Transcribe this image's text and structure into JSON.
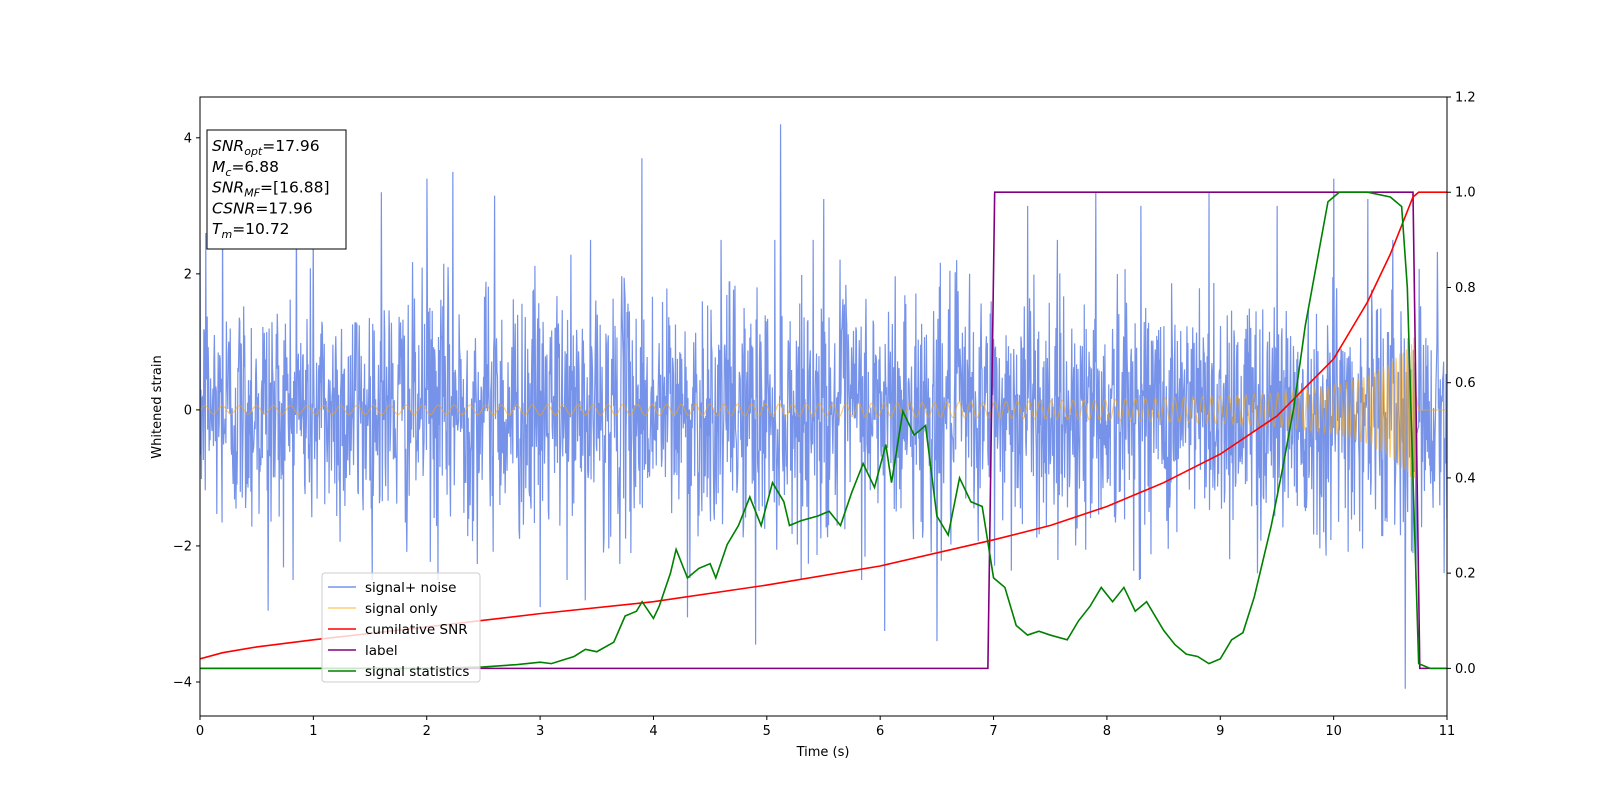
{
  "chart_data": {
    "type": "line",
    "xlabel": "Time (s)",
    "ylabel": "Whitened strain",
    "xlim": [
      0,
      11
    ],
    "ylim": [
      -4.5,
      4.6
    ],
    "y2lim": [
      -0.1,
      1.2
    ],
    "grid": false,
    "legend_position": "lower-left",
    "x_ticks": [
      "0",
      "1",
      "2",
      "3",
      "4",
      "5",
      "6",
      "7",
      "8",
      "9",
      "10",
      "11"
    ],
    "y_ticks": [
      "−4",
      "−2",
      "0",
      "2",
      "4"
    ],
    "y2_ticks": [
      "0.0",
      "0.2",
      "0.4",
      "0.6",
      "0.8",
      "1.0",
      "1.2"
    ],
    "annotation": {
      "lines": [
        {
          "base": "SNR",
          "sub": "opt",
          "value": "=17.96"
        },
        {
          "base": "M",
          "sub": "c",
          "value": "=6.88"
        },
        {
          "base": "SNR",
          "sub": "MF",
          "value": "=[16.88]"
        },
        {
          "base": "CSNR",
          "sub": "",
          "value": "=17.96"
        },
        {
          "base": "T",
          "sub": "m",
          "value": "=10.72"
        }
      ]
    },
    "series": [
      {
        "name": "signal+ noise",
        "axis": "left",
        "color": "#4169e1",
        "description_shape": "noise band, amplitude roughly 1.6 std with spikes up to 4.2",
        "noise_std": 1.0,
        "spikes": [
          {
            "x": 0.05,
            "y": 2.6
          },
          {
            "x": 0.2,
            "y": 3.0
          },
          {
            "x": 0.6,
            "y": -2.95
          },
          {
            "x": 0.85,
            "y": 3.1
          },
          {
            "x": 1.0,
            "y": 2.7
          },
          {
            "x": 1.6,
            "y": 3.2
          },
          {
            "x": 2.0,
            "y": 3.4
          },
          {
            "x": 2.1,
            "y": -2.5
          },
          {
            "x": 2.23,
            "y": 3.5
          },
          {
            "x": 2.6,
            "y": 3.15
          },
          {
            "x": 3.0,
            "y": -2.9
          },
          {
            "x": 3.4,
            "y": -2.8
          },
          {
            "x": 3.9,
            "y": 3.7
          },
          {
            "x": 4.3,
            "y": -3.05
          },
          {
            "x": 4.9,
            "y": -3.45
          },
          {
            "x": 5.12,
            "y": 4.2
          },
          {
            "x": 5.5,
            "y": 3.1
          },
          {
            "x": 6.04,
            "y": -3.25
          },
          {
            "x": 6.5,
            "y": -3.4
          },
          {
            "x": 7.3,
            "y": 3.0
          },
          {
            "x": 7.9,
            "y": 3.2
          },
          {
            "x": 8.3,
            "y": 3.0
          },
          {
            "x": 8.9,
            "y": 3.2
          },
          {
            "x": 9.5,
            "y": 3.0
          },
          {
            "x": 10.0,
            "y": 3.4
          },
          {
            "x": 10.3,
            "y": 3.1
          },
          {
            "x": 10.63,
            "y": -4.1
          }
        ]
      },
      {
        "name": "signal only",
        "axis": "left",
        "color": "#ffa500",
        "description_shape": "chirp envelope",
        "envelope": [
          {
            "x": 0,
            "y": 0.06
          },
          {
            "x": 2,
            "y": 0.07
          },
          {
            "x": 4,
            "y": 0.08
          },
          {
            "x": 6,
            "y": 0.1
          },
          {
            "x": 7,
            "y": 0.12
          },
          {
            "x": 8,
            "y": 0.15
          },
          {
            "x": 9,
            "y": 0.2
          },
          {
            "x": 9.5,
            "y": 0.25
          },
          {
            "x": 10,
            "y": 0.35
          },
          {
            "x": 10.3,
            "y": 0.5
          },
          {
            "x": 10.5,
            "y": 0.7
          },
          {
            "x": 10.65,
            "y": 0.95
          },
          {
            "x": 10.72,
            "y": 1.1
          },
          {
            "x": 10.75,
            "y": 0
          },
          {
            "x": 11,
            "y": 0
          }
        ],
        "merger_time": 10.72
      },
      {
        "name": "cumilative SNR",
        "axis": "right",
        "color": "#ff0000",
        "points": [
          {
            "x": 0,
            "y": 0.02
          },
          {
            "x": 0.2,
            "y": 0.033
          },
          {
            "x": 0.5,
            "y": 0.045
          },
          {
            "x": 1,
            "y": 0.06
          },
          {
            "x": 2,
            "y": 0.087
          },
          {
            "x": 3,
            "y": 0.115
          },
          {
            "x": 4,
            "y": 0.14
          },
          {
            "x": 5,
            "y": 0.175
          },
          {
            "x": 6,
            "y": 0.215
          },
          {
            "x": 7,
            "y": 0.27
          },
          {
            "x": 7.5,
            "y": 0.3
          },
          {
            "x": 8,
            "y": 0.34
          },
          {
            "x": 8.5,
            "y": 0.39
          },
          {
            "x": 9,
            "y": 0.45
          },
          {
            "x": 9.5,
            "y": 0.53
          },
          {
            "x": 10,
            "y": 0.65
          },
          {
            "x": 10.3,
            "y": 0.77
          },
          {
            "x": 10.5,
            "y": 0.87
          },
          {
            "x": 10.6,
            "y": 0.93
          },
          {
            "x": 10.7,
            "y": 0.99
          },
          {
            "x": 10.75,
            "y": 1.0
          },
          {
            "x": 11,
            "y": 1.0
          }
        ]
      },
      {
        "name": "label",
        "axis": "right",
        "color": "#800080",
        "points": [
          {
            "x": 0,
            "y": 0.0
          },
          {
            "x": 6.95,
            "y": 0.0
          },
          {
            "x": 7.01,
            "y": 1.0
          },
          {
            "x": 10.7,
            "y": 1.0
          },
          {
            "x": 10.76,
            "y": 0.0
          },
          {
            "x": 11,
            "y": 0.0
          }
        ]
      },
      {
        "name": "signal statistics",
        "axis": "right",
        "color": "#008000",
        "points": [
          {
            "x": 0,
            "y": 0.0
          },
          {
            "x": 1,
            "y": 0.0
          },
          {
            "x": 2,
            "y": 0.0
          },
          {
            "x": 2.5,
            "y": 0.003
          },
          {
            "x": 2.8,
            "y": 0.008
          },
          {
            "x": 3.0,
            "y": 0.013
          },
          {
            "x": 3.1,
            "y": 0.01
          },
          {
            "x": 3.3,
            "y": 0.025
          },
          {
            "x": 3.4,
            "y": 0.04
          },
          {
            "x": 3.5,
            "y": 0.035
          },
          {
            "x": 3.65,
            "y": 0.055
          },
          {
            "x": 3.75,
            "y": 0.11
          },
          {
            "x": 3.85,
            "y": 0.12
          },
          {
            "x": 3.9,
            "y": 0.14
          },
          {
            "x": 4.0,
            "y": 0.105
          },
          {
            "x": 4.05,
            "y": 0.13
          },
          {
            "x": 4.15,
            "y": 0.2
          },
          {
            "x": 4.2,
            "y": 0.25
          },
          {
            "x": 4.3,
            "y": 0.19
          },
          {
            "x": 4.4,
            "y": 0.21
          },
          {
            "x": 4.5,
            "y": 0.22
          },
          {
            "x": 4.55,
            "y": 0.19
          },
          {
            "x": 4.65,
            "y": 0.26
          },
          {
            "x": 4.75,
            "y": 0.3
          },
          {
            "x": 4.85,
            "y": 0.36
          },
          {
            "x": 4.95,
            "y": 0.3
          },
          {
            "x": 5.05,
            "y": 0.39
          },
          {
            "x": 5.15,
            "y": 0.35
          },
          {
            "x": 5.2,
            "y": 0.3
          },
          {
            "x": 5.3,
            "y": 0.31
          },
          {
            "x": 5.45,
            "y": 0.32
          },
          {
            "x": 5.55,
            "y": 0.33
          },
          {
            "x": 5.65,
            "y": 0.3
          },
          {
            "x": 5.75,
            "y": 0.37
          },
          {
            "x": 5.85,
            "y": 0.43
          },
          {
            "x": 5.95,
            "y": 0.38
          },
          {
            "x": 6.05,
            "y": 0.47
          },
          {
            "x": 6.1,
            "y": 0.39
          },
          {
            "x": 6.2,
            "y": 0.54
          },
          {
            "x": 6.3,
            "y": 0.49
          },
          {
            "x": 6.4,
            "y": 0.51
          },
          {
            "x": 6.5,
            "y": 0.32
          },
          {
            "x": 6.6,
            "y": 0.28
          },
          {
            "x": 6.7,
            "y": 0.4
          },
          {
            "x": 6.8,
            "y": 0.35
          },
          {
            "x": 6.9,
            "y": 0.34
          },
          {
            "x": 7.0,
            "y": 0.19
          },
          {
            "x": 7.1,
            "y": 0.17
          },
          {
            "x": 7.2,
            "y": 0.09
          },
          {
            "x": 7.3,
            "y": 0.07
          },
          {
            "x": 7.4,
            "y": 0.078
          },
          {
            "x": 7.5,
            "y": 0.07
          },
          {
            "x": 7.65,
            "y": 0.06
          },
          {
            "x": 7.75,
            "y": 0.1
          },
          {
            "x": 7.85,
            "y": 0.13
          },
          {
            "x": 7.95,
            "y": 0.17
          },
          {
            "x": 8.05,
            "y": 0.14
          },
          {
            "x": 8.15,
            "y": 0.17
          },
          {
            "x": 8.25,
            "y": 0.12
          },
          {
            "x": 8.35,
            "y": 0.14
          },
          {
            "x": 8.5,
            "y": 0.08
          },
          {
            "x": 8.6,
            "y": 0.05
          },
          {
            "x": 8.7,
            "y": 0.03
          },
          {
            "x": 8.8,
            "y": 0.025
          },
          {
            "x": 8.9,
            "y": 0.01
          },
          {
            "x": 9.0,
            "y": 0.02
          },
          {
            "x": 9.1,
            "y": 0.06
          },
          {
            "x": 9.2,
            "y": 0.075
          },
          {
            "x": 9.3,
            "y": 0.15
          },
          {
            "x": 9.35,
            "y": 0.2
          },
          {
            "x": 9.45,
            "y": 0.3
          },
          {
            "x": 9.55,
            "y": 0.42
          },
          {
            "x": 9.65,
            "y": 0.55
          },
          {
            "x": 9.75,
            "y": 0.72
          },
          {
            "x": 9.85,
            "y": 0.85
          },
          {
            "x": 9.95,
            "y": 0.98
          },
          {
            "x": 10.05,
            "y": 1.0
          },
          {
            "x": 10.3,
            "y": 1.0
          },
          {
            "x": 10.5,
            "y": 0.99
          },
          {
            "x": 10.6,
            "y": 0.97
          },
          {
            "x": 10.65,
            "y": 0.8
          },
          {
            "x": 10.7,
            "y": 0.4
          },
          {
            "x": 10.75,
            "y": 0.01
          },
          {
            "x": 10.85,
            "y": 0.0
          },
          {
            "x": 11,
            "y": 0.0
          }
        ]
      }
    ]
  }
}
